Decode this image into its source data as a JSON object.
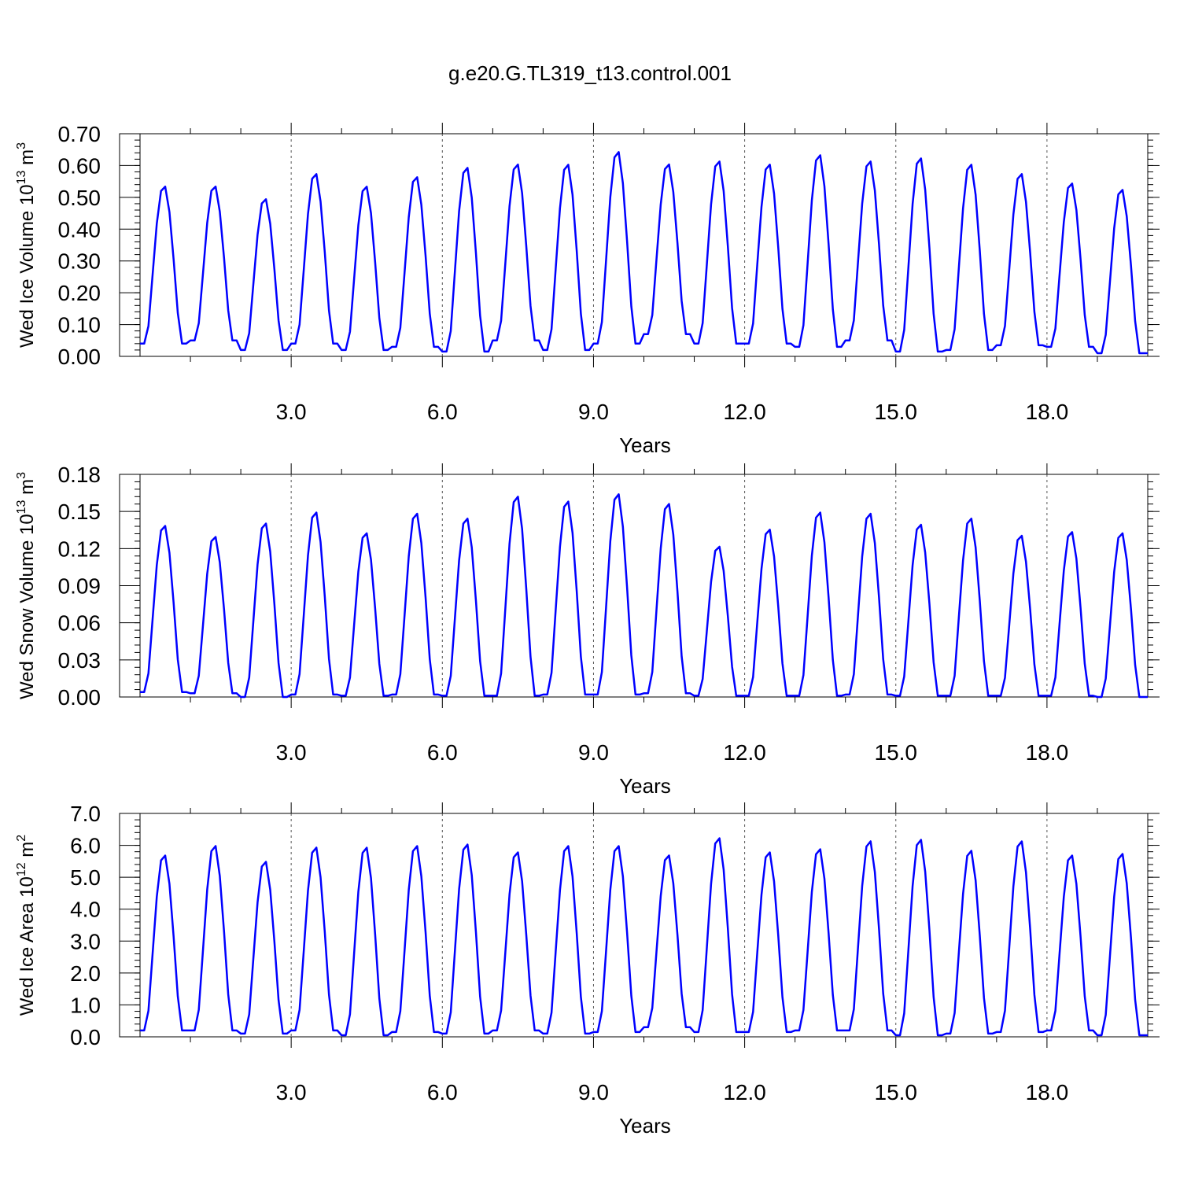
{
  "title": "g.e20.G.TL319_t13.control.001",
  "chart_data": [
    {
      "type": "line",
      "ylabel": "Wed Ice Volume 10",
      "ylabel_exp": "13",
      "ylabel_unit": " m",
      "ylabel_unit_exp": "3",
      "xlabel": "Years",
      "ylim": [
        0,
        0.7
      ],
      "yticks": [
        0,
        0.1,
        0.2,
        0.3,
        0.4,
        0.5,
        0.6,
        0.7
      ],
      "ytick_labels": [
        "0.00",
        "0.10",
        "0.20",
        "0.30",
        "0.40",
        "0.50",
        "0.60",
        "0.70"
      ],
      "peaks": [
        0.54,
        0.54,
        0.5,
        0.58,
        0.54,
        0.57,
        0.6,
        0.61,
        0.61,
        0.65,
        0.61,
        0.62,
        0.61,
        0.64,
        0.62,
        0.63,
        0.61,
        0.58,
        0.55,
        0.53
      ],
      "troughs": [
        0.04,
        0.05,
        0.02,
        0.04,
        0.02,
        0.03,
        0.015,
        0.05,
        0.02,
        0.04,
        0.07,
        0.04,
        0.04,
        0.03,
        0.05,
        0.015,
        0.02,
        0.035,
        0.03,
        0.01
      ],
      "grid": "vertical dashed at x-ticks",
      "color": "#0000ff"
    },
    {
      "type": "line",
      "ylabel": "Wed Snow Volume 10",
      "ylabel_exp": "13",
      "ylabel_unit": " m",
      "ylabel_unit_exp": "3",
      "xlabel": "Years",
      "ylim": [
        0,
        0.18
      ],
      "yticks": [
        0,
        0.03,
        0.06,
        0.09,
        0.12,
        0.15,
        0.18
      ],
      "ytick_labels": [
        "0.00",
        "0.03",
        "0.06",
        "0.09",
        "0.12",
        "0.15",
        "0.18"
      ],
      "peaks": [
        0.14,
        0.131,
        0.142,
        0.151,
        0.134,
        0.15,
        0.146,
        0.164,
        0.16,
        0.166,
        0.158,
        0.123,
        0.137,
        0.151,
        0.15,
        0.141,
        0.146,
        0.132,
        0.135,
        0.134
      ],
      "troughs": [
        0.004,
        0.003,
        0.0,
        0.002,
        0.001,
        0.002,
        0.001,
        0.001,
        0.002,
        0.002,
        0.003,
        0.001,
        0.001,
        0.001,
        0.002,
        0.001,
        0.001,
        0.001,
        0.001,
        0.0
      ],
      "grid": "vertical dashed at x-ticks",
      "color": "#0000ff"
    },
    {
      "type": "line",
      "ylabel": "Wed Ice Area 10",
      "ylabel_exp": "12",
      "ylabel_unit": " m",
      "ylabel_unit_exp": "2",
      "xlabel": "Years",
      "ylim": [
        0,
        7
      ],
      "yticks": [
        0,
        1,
        2,
        3,
        4,
        5,
        6,
        7
      ],
      "ytick_labels": [
        "0.0",
        "1.0",
        "2.0",
        "3.0",
        "4.0",
        "5.0",
        "6.0",
        "7.0"
      ],
      "peaks": [
        5.75,
        6.05,
        5.55,
        6.0,
        6.0,
        6.05,
        6.1,
        5.85,
        6.05,
        6.05,
        5.75,
        6.3,
        5.85,
        5.95,
        6.2,
        6.25,
        5.9,
        6.2,
        5.75,
        5.8
      ],
      "troughs": [
        0.2,
        0.2,
        0.1,
        0.2,
        0.05,
        0.15,
        0.1,
        0.2,
        0.1,
        0.15,
        0.3,
        0.15,
        0.15,
        0.2,
        0.2,
        0.05,
        0.1,
        0.15,
        0.2,
        0.05
      ],
      "grid": "vertical dashed at x-ticks",
      "color": "#0000ff"
    }
  ],
  "x_axis": {
    "xlim": [
      0,
      20
    ],
    "ticks": [
      3,
      6,
      9,
      12,
      15,
      18
    ],
    "tick_labels": [
      "3.0",
      "6.0",
      "9.0",
      "12.0",
      "15.0",
      "18.0"
    ]
  }
}
